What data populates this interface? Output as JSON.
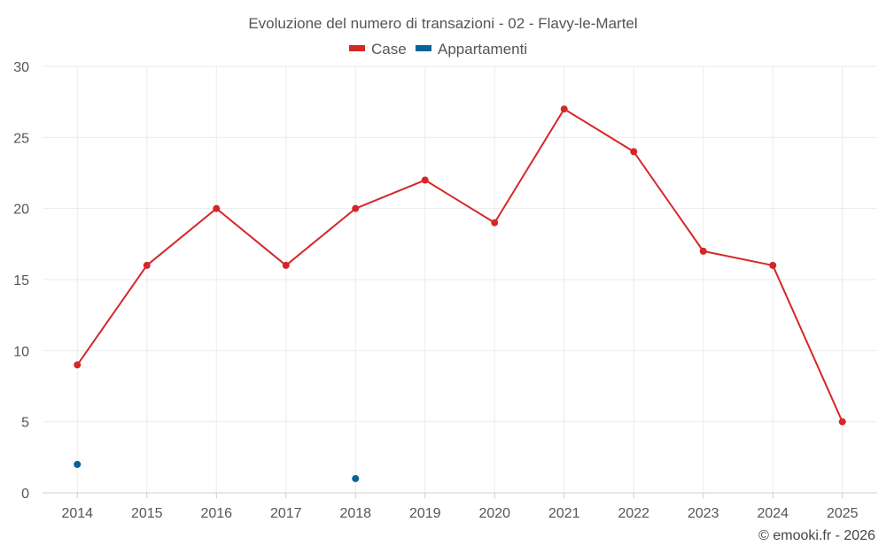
{
  "chart_data": {
    "type": "line",
    "title": "Evoluzione del numero di transazioni - 02 - Flavy-le-Martel",
    "categories": [
      "2014",
      "2015",
      "2016",
      "2017",
      "2018",
      "2019",
      "2020",
      "2021",
      "2022",
      "2023",
      "2024",
      "2025"
    ],
    "yticks": [
      "0",
      "5",
      "10",
      "15",
      "20",
      "25",
      "30"
    ],
    "ylim": [
      0,
      30
    ],
    "grid": true,
    "legend_position": "top-center",
    "series": [
      {
        "name": "Case",
        "color": "#d62728",
        "values": [
          9,
          16,
          20,
          16,
          20,
          22,
          19,
          27,
          24,
          17,
          16,
          5
        ]
      },
      {
        "name": "Appartamenti",
        "color": "#08639c",
        "values": [
          2,
          null,
          null,
          null,
          1,
          null,
          null,
          null,
          null,
          null,
          null,
          null
        ]
      }
    ]
  },
  "credit": "© emooki.fr - 2026"
}
